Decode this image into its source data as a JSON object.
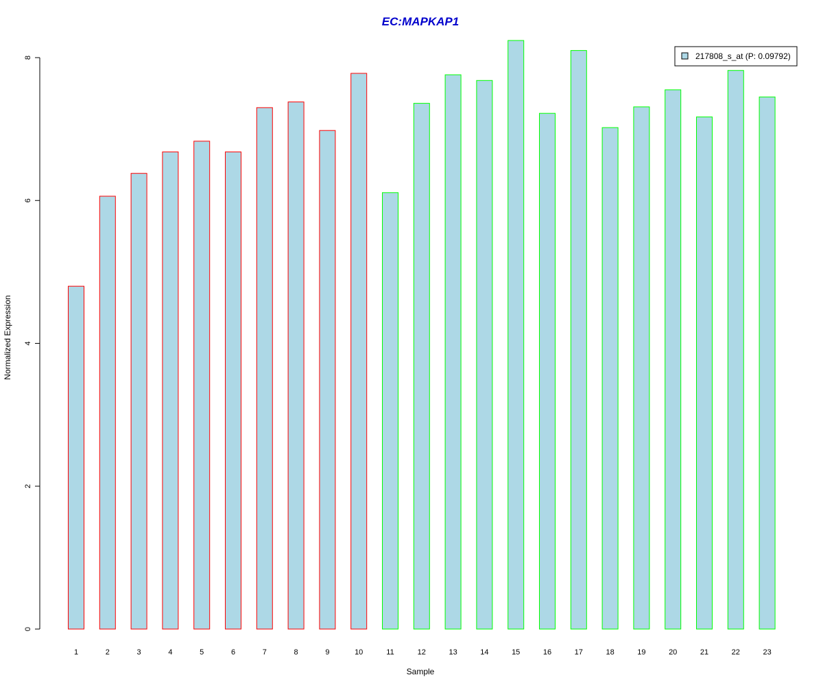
{
  "chart_data": {
    "type": "bar",
    "title": "EC:MAPKAP1",
    "xlabel": "Sample",
    "ylabel": "Normalized Expression",
    "ylim": [
      0,
      8.2
    ],
    "yticks": [
      0,
      2,
      4,
      6,
      8
    ],
    "categories": [
      "1",
      "2",
      "3",
      "4",
      "5",
      "6",
      "7",
      "8",
      "9",
      "10",
      "11",
      "12",
      "13",
      "14",
      "15",
      "16",
      "17",
      "18",
      "19",
      "20",
      "21",
      "22",
      "23"
    ],
    "series": [
      {
        "name": "217808_s_at (P: 0.09792)",
        "values": [
          4.8,
          6.06,
          6.38,
          6.68,
          6.83,
          6.68,
          7.3,
          7.38,
          6.98,
          7.78,
          6.11,
          7.36,
          7.76,
          7.68,
          8.24,
          7.22,
          8.1,
          7.02,
          7.31,
          7.55,
          7.17,
          7.82,
          7.45
        ],
        "fill_color": "#add8e6"
      }
    ],
    "bar_border_colors": [
      "#ff0000",
      "#ff0000",
      "#ff0000",
      "#ff0000",
      "#ff0000",
      "#ff0000",
      "#ff0000",
      "#ff0000",
      "#ff0000",
      "#ff0000",
      "#00ff00",
      "#00ff00",
      "#00ff00",
      "#00ff00",
      "#00ff00",
      "#00ff00",
      "#00ff00",
      "#00ff00",
      "#00ff00",
      "#00ff00",
      "#00ff00",
      "#00ff00",
      "#00ff00"
    ],
    "title_color": "#0000cc",
    "grid": false,
    "legend_position": "top-right"
  }
}
